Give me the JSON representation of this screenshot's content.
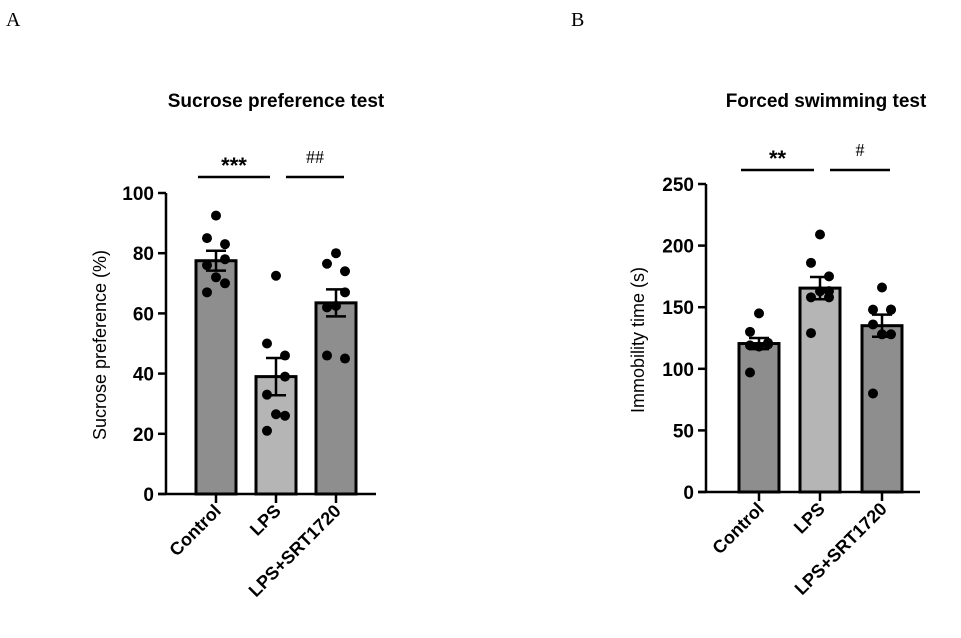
{
  "chart_data": [
    {
      "panel": "A",
      "type": "bar",
      "title": "Sucrose preference test",
      "xlabel": "",
      "ylabel": "Sucrose preference (%)",
      "ylim": [
        0,
        100
      ],
      "yticks": [
        0,
        20,
        40,
        60,
        80,
        100
      ],
      "categories": [
        "Control",
        "LPS",
        "LPS+SRT1720"
      ],
      "values": [
        77.5,
        39,
        63.5
      ],
      "sem": [
        3.3,
        6.2,
        4.5
      ],
      "colors": [
        "#8e8e8e",
        "#b5b5b5",
        "#8e8e8e"
      ],
      "points": [
        [
          92.5,
          85,
          83,
          78,
          76,
          72,
          70,
          67
        ],
        [
          72.5,
          50,
          46,
          39,
          33,
          26.5,
          26,
          21
        ],
        [
          80,
          76.5,
          74,
          67,
          62,
          62.5,
          45,
          46
        ]
      ],
      "significance": [
        {
          "from": 0,
          "to": 1,
          "label": "***"
        },
        {
          "from": 1,
          "to": 2,
          "label": "##"
        }
      ],
      "grid": false,
      "legend": "none"
    },
    {
      "panel": "B",
      "type": "bar",
      "title": "Forced swimming test",
      "xlabel": "",
      "ylabel": "Immobility time (s)",
      "ylim": [
        0,
        250
      ],
      "yticks": [
        0,
        50,
        100,
        150,
        200,
        250
      ],
      "categories": [
        "Control",
        "LPS",
        "LPS+SRT1720"
      ],
      "values": [
        120.5,
        165.5,
        135
      ],
      "sem": [
        4.5,
        9,
        9
      ],
      "colors": [
        "#8e8e8e",
        "#b5b5b5",
        "#8e8e8e"
      ],
      "points": [
        [
          145,
          130,
          121,
          120,
          119,
          118,
          120,
          97
        ],
        [
          209,
          186,
          175,
          163,
          158,
          163,
          158,
          129
        ],
        [
          166,
          148,
          148,
          148,
          136,
          128,
          128,
          80
        ]
      ],
      "significance": [
        {
          "from": 0,
          "to": 1,
          "label": "**"
        },
        {
          "from": 1,
          "to": 2,
          "label": "#"
        }
      ],
      "grid": false,
      "legend": "none"
    }
  ]
}
